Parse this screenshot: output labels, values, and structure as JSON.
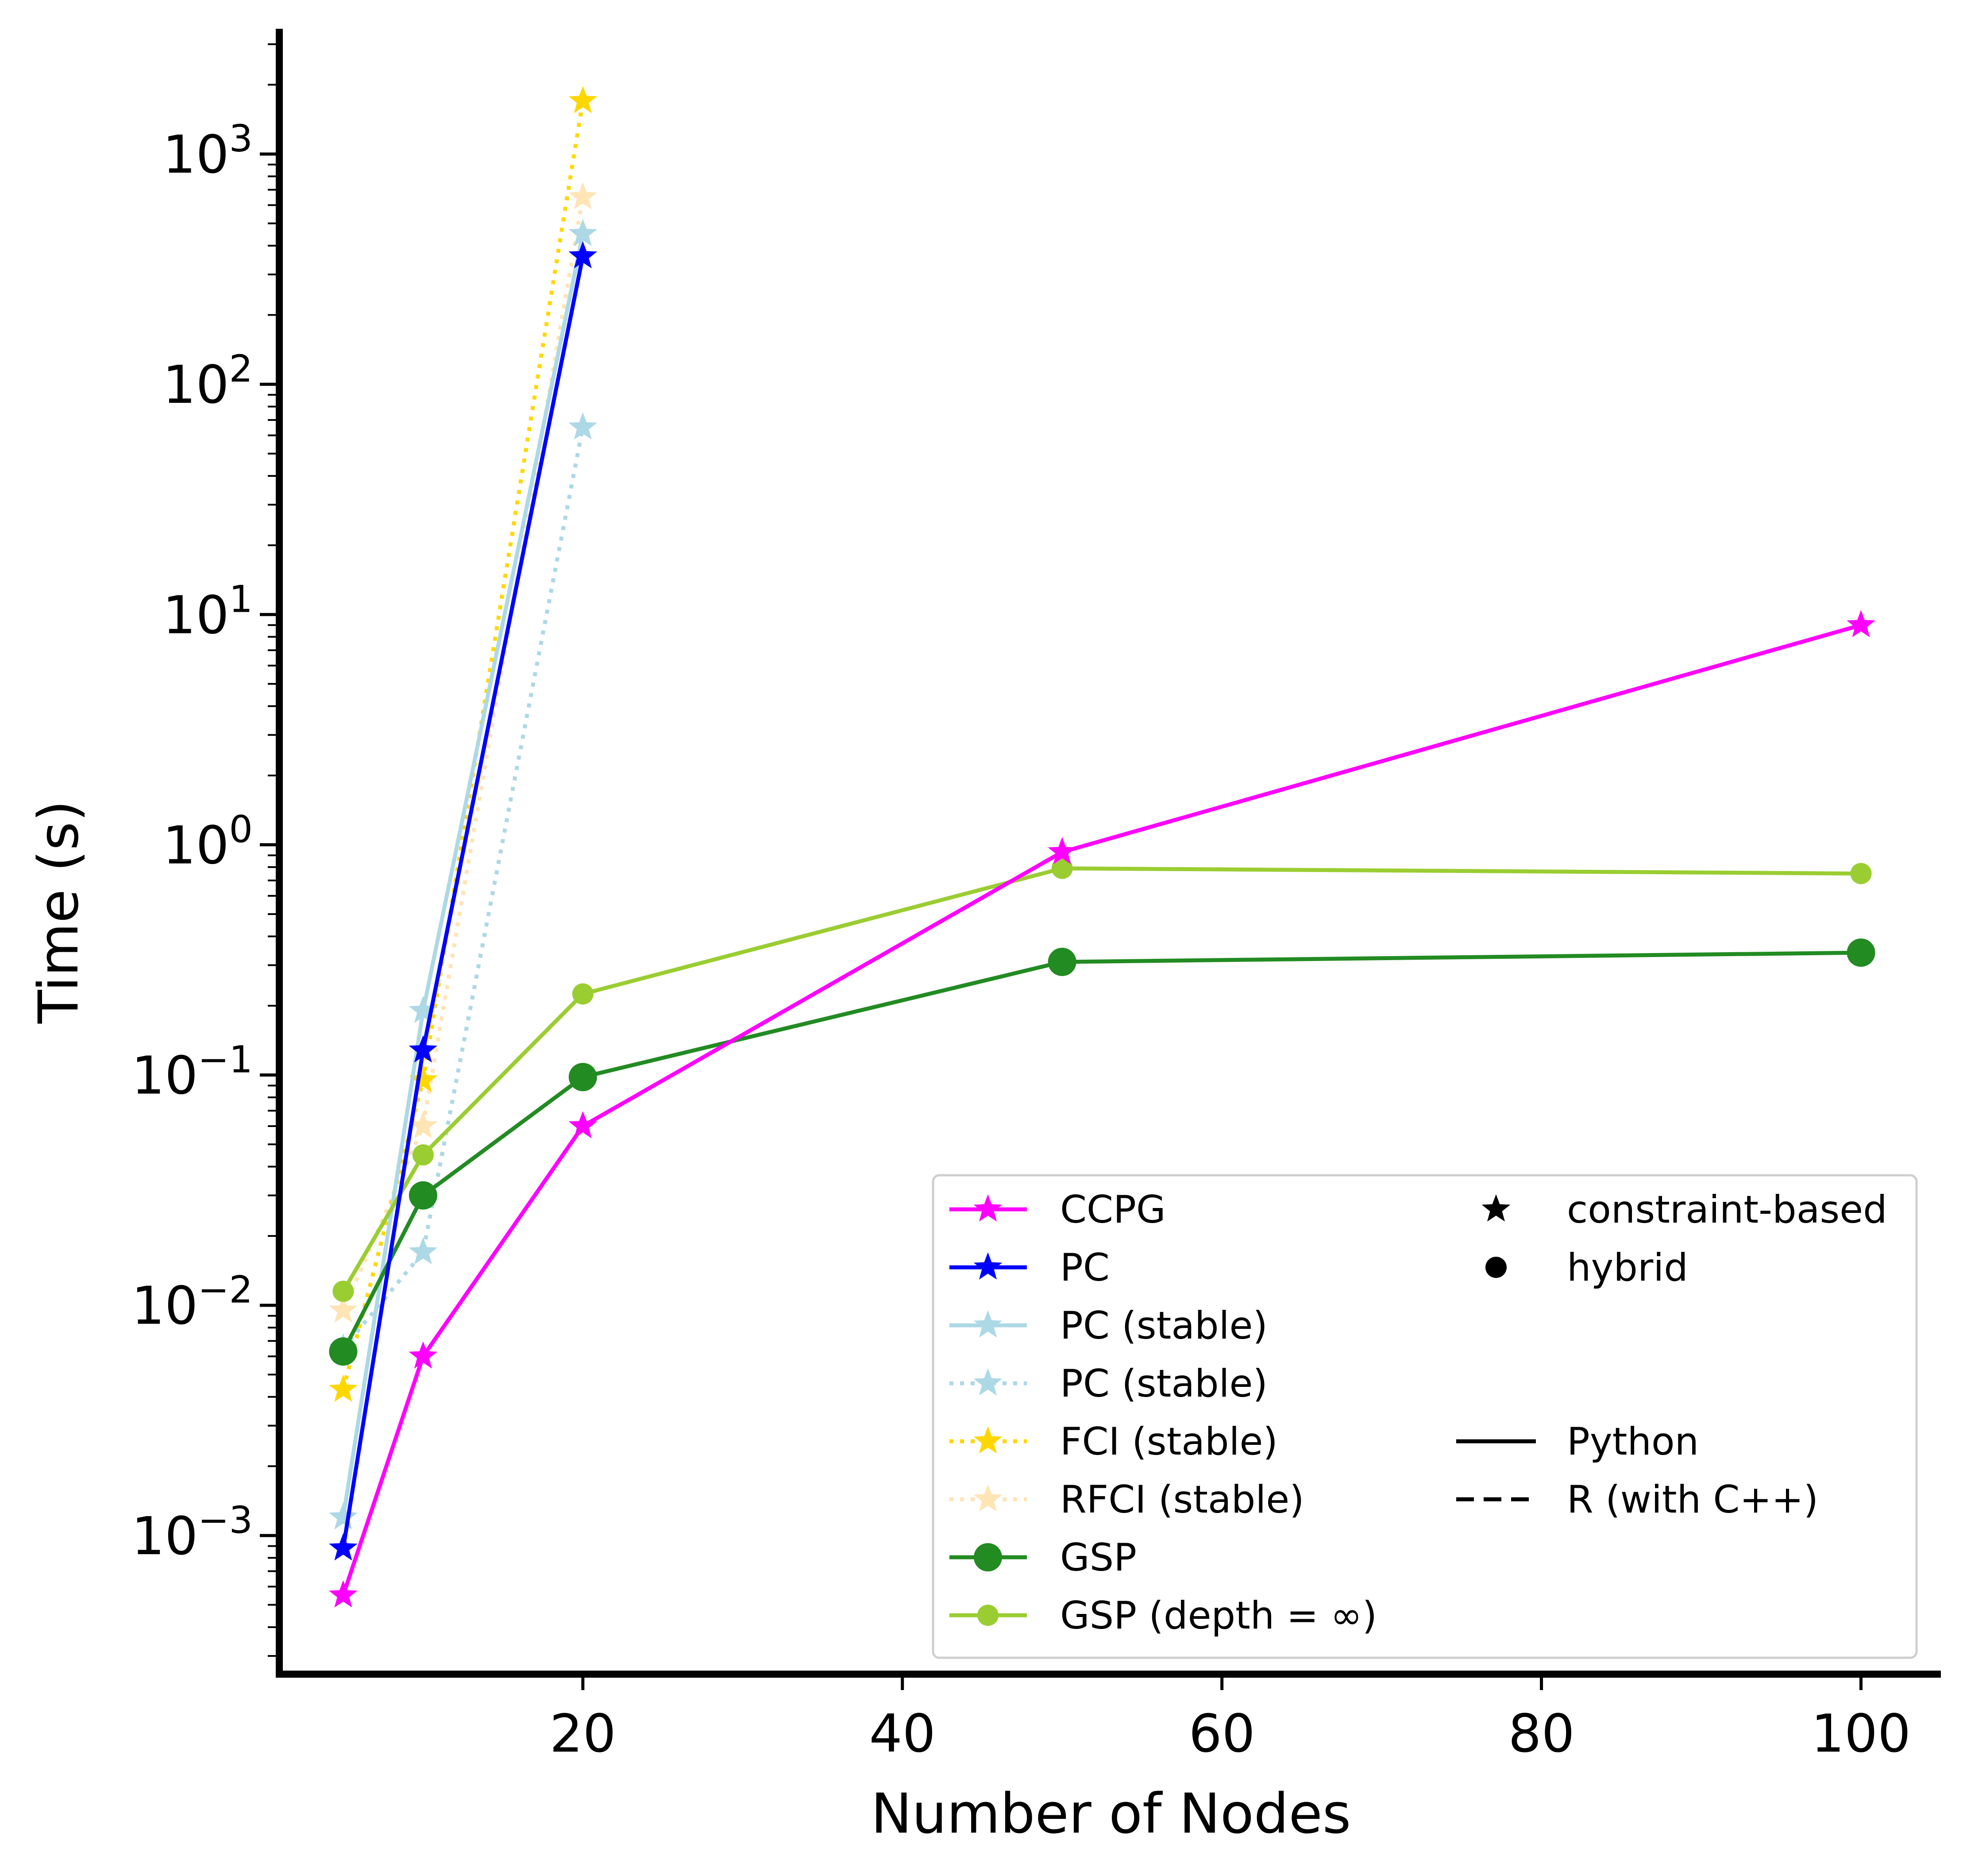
{
  "chart_data": {
    "type": "line",
    "title": "",
    "xlabel": "Number of Nodes",
    "ylabel": "Time (s)",
    "xlim": [
      1,
      105
    ],
    "ylim": [
      0.00025,
      3500
    ],
    "yscale": "log",
    "x_ticks": [
      {
        "value": 20,
        "label": "20"
      },
      {
        "value": 40,
        "label": "40"
      },
      {
        "value": 60,
        "label": "60"
      },
      {
        "value": 80,
        "label": "80"
      },
      {
        "value": 100,
        "label": "100"
      }
    ],
    "y_ticks": [
      {
        "value": 0.001,
        "base": "10",
        "exp": "−3"
      },
      {
        "value": 0.01,
        "base": "10",
        "exp": "−2"
      },
      {
        "value": 0.1,
        "base": "10",
        "exp": "−1"
      },
      {
        "value": 1,
        "base": "10",
        "exp": "0"
      },
      {
        "value": 10,
        "base": "10",
        "exp": "1"
      },
      {
        "value": 100,
        "base": "10",
        "exp": "2"
      },
      {
        "value": 1000,
        "base": "10",
        "exp": "3"
      }
    ],
    "series": [
      {
        "name": "PC (stable)",
        "color": "#add8e6",
        "linestyle": "dotted",
        "marker": "star",
        "x": [
          5,
          10,
          20
        ],
        "values": [
          0.0065,
          0.017,
          65
        ]
      },
      {
        "name": "RFCI (stable)",
        "color": "#ffe4b5",
        "linestyle": "dotted",
        "marker": "star",
        "x": [
          5,
          10,
          20
        ],
        "values": [
          0.0095,
          0.06,
          650
        ]
      },
      {
        "name": "FCI (stable)",
        "color": "#ffd700",
        "linestyle": "dotted",
        "marker": "star",
        "x": [
          5,
          10,
          20
        ],
        "values": [
          0.0043,
          0.095,
          1700
        ]
      },
      {
        "name": "PC (stable)",
        "color": "#add8e6",
        "linestyle": "solid",
        "marker": "star",
        "x": [
          5,
          10,
          20
        ],
        "values": [
          0.0012,
          0.19,
          450
        ]
      },
      {
        "name": "GSP",
        "color": "#228b22",
        "linestyle": "solid",
        "marker": "circle-large",
        "x": [
          5,
          10,
          20,
          50,
          100
        ],
        "values": [
          0.0063,
          0.03,
          0.098,
          0.31,
          0.34
        ]
      },
      {
        "name": "GSP (depth = ∞)",
        "color": "#9acd32",
        "linestyle": "solid",
        "marker": "circle",
        "x": [
          5,
          10,
          20,
          50,
          100
        ],
        "values": [
          0.0115,
          0.045,
          0.225,
          0.79,
          0.75
        ]
      },
      {
        "name": "PC",
        "color": "#0000ff",
        "linestyle": "solid",
        "marker": "star",
        "x": [
          5,
          10,
          20
        ],
        "values": [
          0.00088,
          0.128,
          360
        ]
      },
      {
        "name": "CCPG",
        "color": "#ff00ff",
        "linestyle": "solid",
        "marker": "star",
        "x": [
          5,
          10,
          20,
          50,
          100
        ],
        "values": [
          0.00055,
          0.006,
          0.06,
          0.93,
          9.0
        ]
      }
    ],
    "legend": {
      "position": "lower-right",
      "entries": [
        {
          "label": "CCPG",
          "color": "#ff00ff",
          "linestyle": "solid",
          "marker": "star"
        },
        {
          "label": "PC",
          "color": "#0000ff",
          "linestyle": "solid",
          "marker": "star"
        },
        {
          "label": "PC (stable)",
          "color": "#add8e6",
          "linestyle": "solid",
          "marker": "star"
        },
        {
          "label": "PC (stable)",
          "color": "#add8e6",
          "linestyle": "dotted",
          "marker": "star"
        },
        {
          "label": "FCI (stable)",
          "color": "#ffd700",
          "linestyle": "dotted",
          "marker": "star"
        },
        {
          "label": "RFCI (stable)",
          "color": "#ffe4b5",
          "linestyle": "dotted",
          "marker": "star"
        },
        {
          "label": "GSP",
          "color": "#228b22",
          "linestyle": "solid",
          "marker": "circle-large"
        },
        {
          "label": "GSP (depth = ∞)",
          "color": "#9acd32",
          "linestyle": "solid",
          "marker": "circle"
        }
      ],
      "marker_entries": [
        {
          "label": "constraint-based",
          "marker": "star"
        },
        {
          "label": "hybrid",
          "marker": "circle"
        }
      ],
      "style_entries": [
        {
          "label": "Python",
          "linestyle": "solid"
        },
        {
          "label": "R (with C++)",
          "linestyle": "dashed"
        }
      ]
    }
  }
}
